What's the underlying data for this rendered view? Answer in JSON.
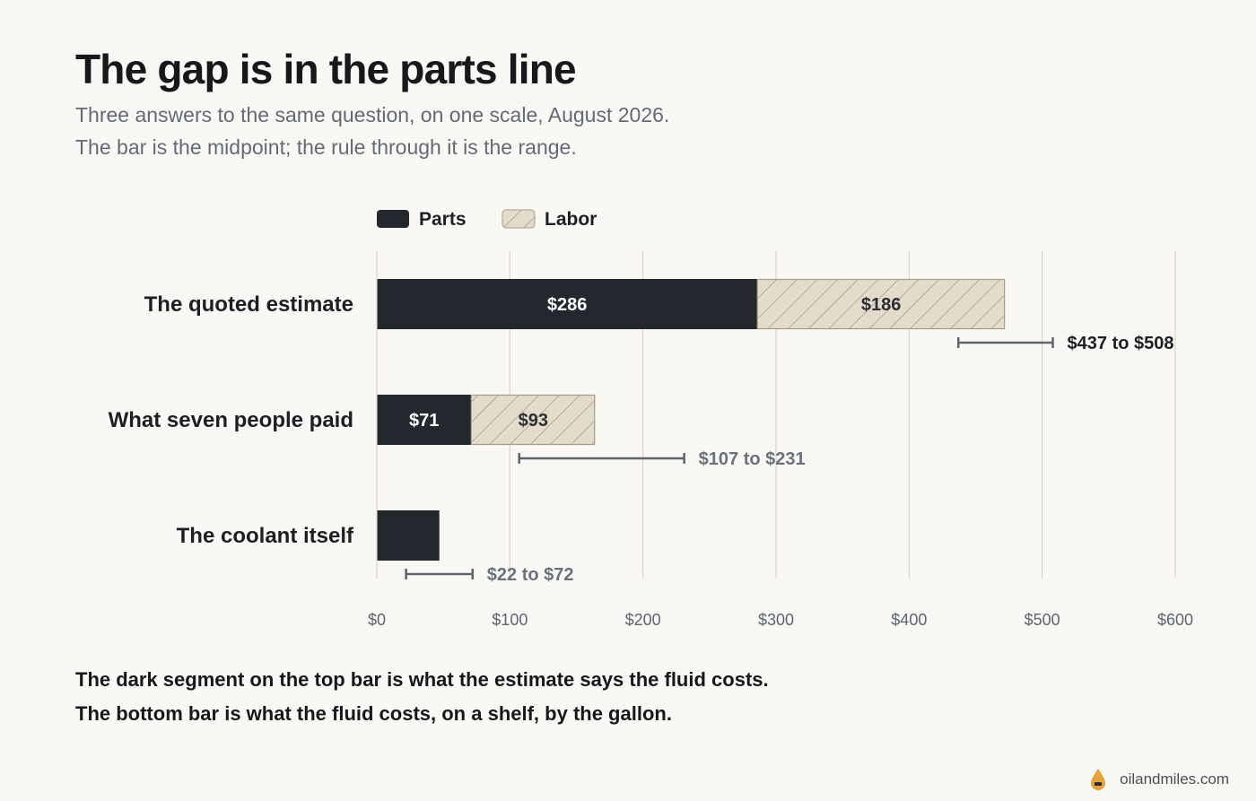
{
  "title": "The gap is in the parts line",
  "subtitle_lines": [
    "Three answers to the same question, on one scale, August 2026.",
    "The bar is the midpoint; the rule through it is the range."
  ],
  "notes": [
    "The dark segment on the top bar is what the estimate says the fluid costs.",
    "The bottom bar is what the fluid costs, on a shelf, by the gallon."
  ],
  "footer": {
    "site": "oilandmiles.com",
    "logo_icon": "oil-drop-icon"
  },
  "colors": {
    "parts": "#23272e",
    "labor_fill": "#e3dbcb",
    "labor_hatch": "#a89d88",
    "grid": "#dcd6c9",
    "range": "#5d6470",
    "background": "#f9f8f5"
  },
  "chart_data": {
    "type": "bar",
    "orientation": "horizontal",
    "stacked": true,
    "categories": [
      "The quoted estimate",
      "What seven people paid",
      "The coolant itself"
    ],
    "series": [
      {
        "name": "Parts",
        "values": [
          286,
          71,
          47
        ],
        "labels": [
          "$286",
          "$71",
          ""
        ]
      },
      {
        "name": "Labor",
        "values": [
          186,
          93,
          0
        ],
        "labels": [
          "$186",
          "$93",
          ""
        ]
      }
    ],
    "ranges": [
      {
        "low": 437,
        "high": 508,
        "label": "$437 to $508"
      },
      {
        "low": 107,
        "high": 231,
        "label": "$107 to $231"
      },
      {
        "low": 22,
        "high": 72,
        "label": "$22 to $72"
      }
    ],
    "xlim": [
      0,
      600
    ],
    "xticks": [
      0,
      100,
      200,
      300,
      400,
      500,
      600
    ],
    "xtick_labels": [
      "$0",
      "$100",
      "$200",
      "$300",
      "$400",
      "$500",
      "$600"
    ],
    "legend_position": "top",
    "grid": true
  }
}
